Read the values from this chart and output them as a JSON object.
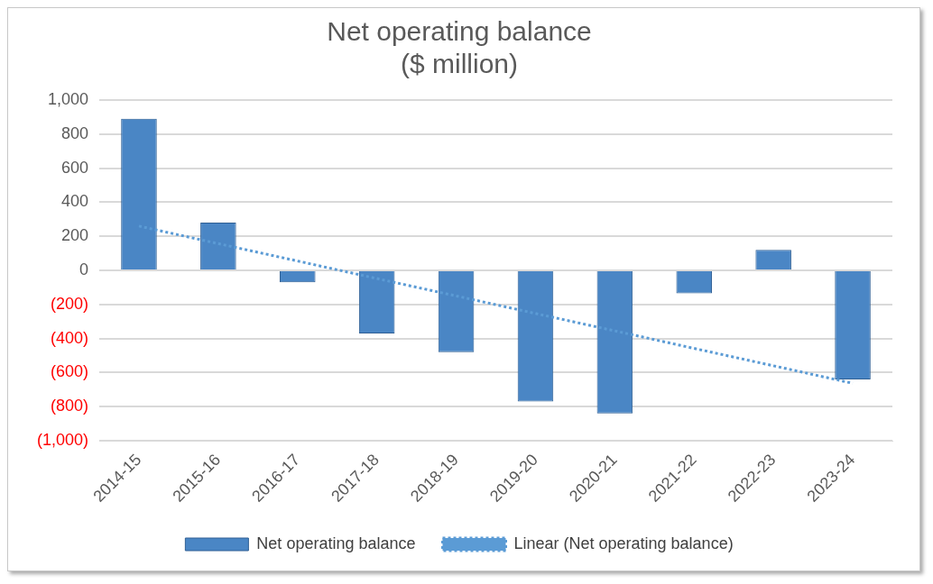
{
  "chart_data": {
    "type": "bar",
    "title": "Net operating balance\n($ million)",
    "categories": [
      "2014-15",
      "2015-16",
      "2016-17",
      "2017-18",
      "2018-19",
      "2019-20",
      "2020-21",
      "2021-22",
      "2022-23",
      "2023-24"
    ],
    "series": [
      {
        "name": "Net operating balance",
        "color": "#4a86c5",
        "values": [
          890,
          280,
          -70,
          -370,
          -480,
          -770,
          -840,
          -135,
          120,
          -640
        ]
      },
      {
        "name": "Linear (Net operating balance)",
        "type": "line",
        "color": "#5b9bd5",
        "line_style": "dotted",
        "marker": "none",
        "values": [
          260,
          157,
          55,
          -48,
          -150,
          -253,
          -355,
          -458,
          -560,
          -663
        ]
      }
    ],
    "ylim": [
      -1000,
      1000
    ],
    "yticks": [
      {
        "value": -1000,
        "label": "(1,000)"
      },
      {
        "value": -800,
        "label": "(800)"
      },
      {
        "value": -600,
        "label": "(600)"
      },
      {
        "value": -400,
        "label": "(400)"
      },
      {
        "value": -200,
        "label": "(200)"
      },
      0,
      200,
      400,
      600,
      800,
      {
        "value": 1000,
        "label": "1,000"
      }
    ],
    "grid": "y",
    "legend": "bottom"
  }
}
